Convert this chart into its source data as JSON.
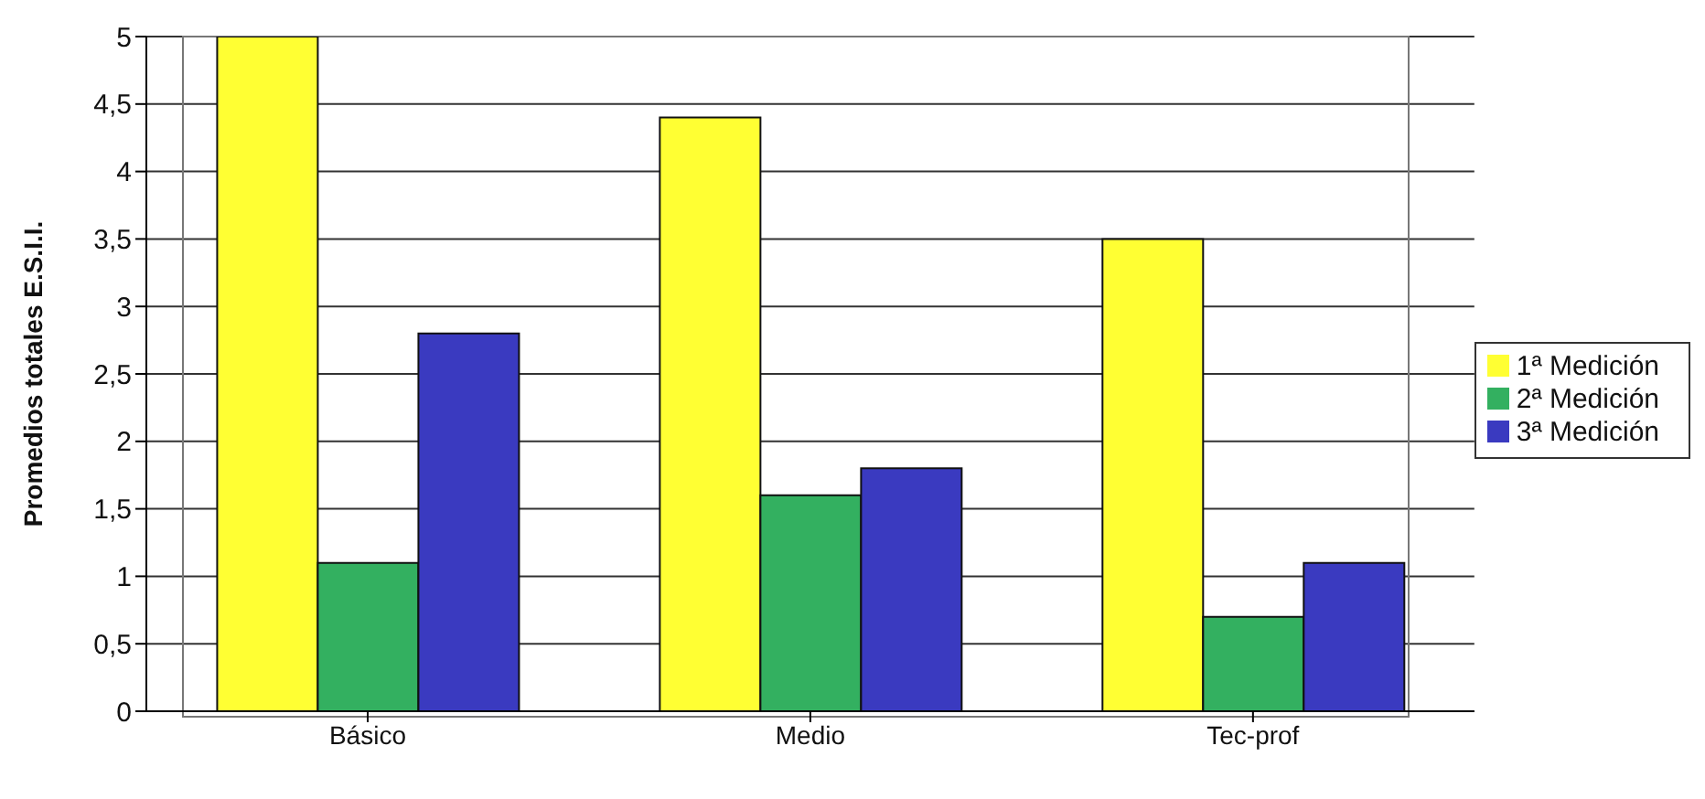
{
  "chart_data": {
    "type": "bar",
    "ylabel": "Promedios totales E.S.I.I.",
    "categories": [
      "Básico",
      "Medio",
      "Tec-prof"
    ],
    "series": [
      {
        "name": "1ª Medición",
        "color": "#ffff33",
        "values": [
          5,
          4.4,
          3.5
        ]
      },
      {
        "name": "2ª Medición",
        "color": "#33b060",
        "values": [
          1.1,
          1.6,
          0.7
        ]
      },
      {
        "name": "3ª Medición",
        "color": "#3a3ac0",
        "values": [
          2.8,
          1.8,
          1.1
        ]
      }
    ],
    "ylim": [
      0,
      5
    ],
    "yticks": [
      0,
      {
        "value": 0.5,
        "label": "0,5"
      },
      1,
      {
        "value": 1.5,
        "label": "1,5"
      },
      2,
      {
        "value": 2.5,
        "label": "2,5"
      },
      3,
      {
        "value": 3.5,
        "label": "3,5"
      },
      4,
      {
        "value": 4.5,
        "label": "4,5"
      },
      5
    ],
    "grid": "y",
    "legend": "right"
  }
}
